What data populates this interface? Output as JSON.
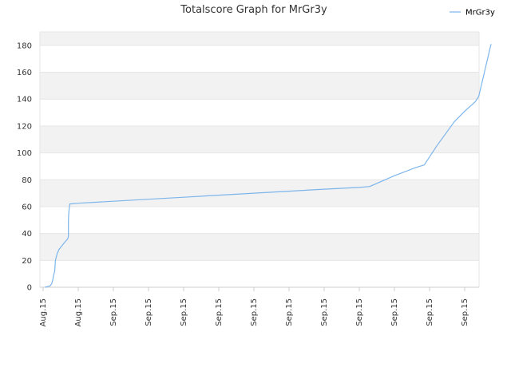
{
  "chart_data": {
    "type": "line",
    "title": "Totalscore Graph for MrGr3y",
    "xlabel": "",
    "ylabel": "",
    "ylim": [
      0,
      190
    ],
    "yticks": [
      0,
      20,
      40,
      60,
      80,
      100,
      120,
      140,
      160,
      180
    ],
    "xtick_labels": [
      "Aug.15",
      "Aug.15",
      "Sep.15",
      "Sep.15",
      "Sep.15",
      "Sep.15",
      "Sep.15",
      "Sep.15",
      "Sep.15",
      "Sep.15",
      "Sep.15",
      "Sep.15",
      "Sep.15"
    ],
    "x_range": [
      0,
      12.4
    ],
    "grid": true,
    "alternate_bands": true,
    "legend_position": "top-right",
    "colors": {
      "line": "#7cb5ec",
      "band": "#f2f2f2",
      "grid": "#e6e6e6",
      "axis": "#cccccc"
    },
    "series": [
      {
        "name": "MrGr3y",
        "points": [
          [
            0.05,
            0
          ],
          [
            0.2,
            1
          ],
          [
            0.25,
            3
          ],
          [
            0.28,
            6
          ],
          [
            0.3,
            9
          ],
          [
            0.33,
            12
          ],
          [
            0.35,
            20
          ],
          [
            0.4,
            25
          ],
          [
            0.45,
            28
          ],
          [
            0.6,
            33
          ],
          [
            0.7,
            36
          ],
          [
            0.72,
            38
          ],
          [
            0.72,
            50
          ],
          [
            0.73,
            55
          ],
          [
            0.74,
            58
          ],
          [
            0.76,
            62
          ],
          [
            1,
            62.5
          ],
          [
            2,
            64
          ],
          [
            3,
            65.5
          ],
          [
            4,
            67
          ],
          [
            5,
            68.5
          ],
          [
            6,
            70
          ],
          [
            7,
            71.5
          ],
          [
            8,
            73
          ],
          [
            9,
            74.3
          ],
          [
            9.3,
            75
          ],
          [
            10,
            83
          ],
          [
            10.6,
            89
          ],
          [
            10.85,
            91
          ],
          [
            11.2,
            105
          ],
          [
            11.7,
            123
          ],
          [
            12,
            131
          ],
          [
            12.3,
            138
          ],
          [
            12.4,
            142
          ],
          [
            12.75,
            181
          ]
        ]
      }
    ]
  }
}
